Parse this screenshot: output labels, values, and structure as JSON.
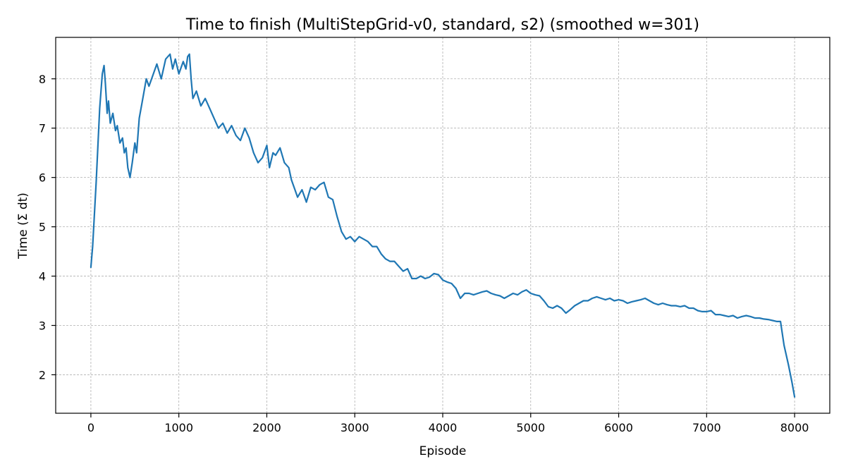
{
  "chart_data": {
    "type": "line",
    "title": "Time to finish (MultiStepGrid-v0, standard, s2) (smoothed w=301)",
    "xlabel": "Episode",
    "ylabel": "Time (Σ dt)",
    "xlim": [
      -400,
      8400
    ],
    "ylim": [
      1.22,
      8.84
    ],
    "xticks": [
      0,
      1000,
      2000,
      3000,
      4000,
      5000,
      6000,
      7000,
      8000
    ],
    "yticks": [
      2,
      3,
      4,
      5,
      6,
      7,
      8
    ],
    "grid": true,
    "series": [
      {
        "color": "#1f77b4",
        "points": [
          [
            0,
            4.18
          ],
          [
            20,
            4.6
          ],
          [
            60,
            5.9
          ],
          [
            100,
            7.4
          ],
          [
            130,
            8.1
          ],
          [
            150,
            8.27
          ],
          [
            165,
            7.9
          ],
          [
            185,
            7.3
          ],
          [
            200,
            7.55
          ],
          [
            220,
            7.1
          ],
          [
            250,
            7.3
          ],
          [
            280,
            6.95
          ],
          [
            300,
            7.05
          ],
          [
            330,
            6.7
          ],
          [
            360,
            6.8
          ],
          [
            380,
            6.5
          ],
          [
            400,
            6.6
          ],
          [
            420,
            6.2
          ],
          [
            445,
            6.0
          ],
          [
            470,
            6.3
          ],
          [
            500,
            6.7
          ],
          [
            520,
            6.5
          ],
          [
            550,
            7.2
          ],
          [
            580,
            7.5
          ],
          [
            600,
            7.7
          ],
          [
            630,
            8.0
          ],
          [
            660,
            7.85
          ],
          [
            700,
            8.05
          ],
          [
            750,
            8.3
          ],
          [
            800,
            8.0
          ],
          [
            850,
            8.4
          ],
          [
            900,
            8.5
          ],
          [
            930,
            8.2
          ],
          [
            960,
            8.4
          ],
          [
            1000,
            8.1
          ],
          [
            1050,
            8.35
          ],
          [
            1080,
            8.2
          ],
          [
            1100,
            8.45
          ],
          [
            1120,
            8.5
          ],
          [
            1140,
            8.0
          ],
          [
            1160,
            7.6
          ],
          [
            1200,
            7.75
          ],
          [
            1250,
            7.45
          ],
          [
            1300,
            7.6
          ],
          [
            1350,
            7.4
          ],
          [
            1400,
            7.2
          ],
          [
            1450,
            7.0
          ],
          [
            1500,
            7.1
          ],
          [
            1550,
            6.9
          ],
          [
            1600,
            7.05
          ],
          [
            1650,
            6.85
          ],
          [
            1700,
            6.75
          ],
          [
            1750,
            7.0
          ],
          [
            1800,
            6.8
          ],
          [
            1850,
            6.5
          ],
          [
            1900,
            6.3
          ],
          [
            1950,
            6.4
          ],
          [
            2000,
            6.65
          ],
          [
            2030,
            6.2
          ],
          [
            2070,
            6.5
          ],
          [
            2100,
            6.45
          ],
          [
            2150,
            6.6
          ],
          [
            2200,
            6.3
          ],
          [
            2250,
            6.2
          ],
          [
            2280,
            5.95
          ],
          [
            2320,
            5.75
          ],
          [
            2350,
            5.6
          ],
          [
            2400,
            5.75
          ],
          [
            2450,
            5.5
          ],
          [
            2500,
            5.8
          ],
          [
            2550,
            5.75
          ],
          [
            2600,
            5.85
          ],
          [
            2650,
            5.9
          ],
          [
            2700,
            5.6
          ],
          [
            2750,
            5.55
          ],
          [
            2800,
            5.2
          ],
          [
            2850,
            4.9
          ],
          [
            2900,
            4.75
          ],
          [
            2950,
            4.8
          ],
          [
            3000,
            4.7
          ],
          [
            3050,
            4.8
          ],
          [
            3100,
            4.75
          ],
          [
            3150,
            4.7
          ],
          [
            3200,
            4.6
          ],
          [
            3250,
            4.6
          ],
          [
            3300,
            4.45
          ],
          [
            3350,
            4.35
          ],
          [
            3400,
            4.3
          ],
          [
            3450,
            4.3
          ],
          [
            3500,
            4.2
          ],
          [
            3550,
            4.1
          ],
          [
            3600,
            4.15
          ],
          [
            3650,
            3.95
          ],
          [
            3700,
            3.95
          ],
          [
            3750,
            4.0
          ],
          [
            3800,
            3.95
          ],
          [
            3850,
            3.98
          ],
          [
            3900,
            4.05
          ],
          [
            3950,
            4.03
          ],
          [
            4000,
            3.92
          ],
          [
            4050,
            3.88
          ],
          [
            4100,
            3.85
          ],
          [
            4150,
            3.75
          ],
          [
            4200,
            3.55
          ],
          [
            4250,
            3.65
          ],
          [
            4300,
            3.65
          ],
          [
            4350,
            3.62
          ],
          [
            4400,
            3.65
          ],
          [
            4450,
            3.68
          ],
          [
            4500,
            3.7
          ],
          [
            4550,
            3.65
          ],
          [
            4600,
            3.62
          ],
          [
            4650,
            3.6
          ],
          [
            4700,
            3.55
          ],
          [
            4750,
            3.6
          ],
          [
            4800,
            3.65
          ],
          [
            4850,
            3.62
          ],
          [
            4900,
            3.68
          ],
          [
            4950,
            3.72
          ],
          [
            5000,
            3.65
          ],
          [
            5050,
            3.62
          ],
          [
            5100,
            3.6
          ],
          [
            5150,
            3.5
          ],
          [
            5200,
            3.38
          ],
          [
            5250,
            3.35
          ],
          [
            5300,
            3.4
          ],
          [
            5350,
            3.35
          ],
          [
            5400,
            3.25
          ],
          [
            5450,
            3.32
          ],
          [
            5500,
            3.4
          ],
          [
            5550,
            3.45
          ],
          [
            5600,
            3.5
          ],
          [
            5650,
            3.5
          ],
          [
            5700,
            3.55
          ],
          [
            5750,
            3.58
          ],
          [
            5800,
            3.55
          ],
          [
            5850,
            3.52
          ],
          [
            5900,
            3.55
          ],
          [
            5950,
            3.5
          ],
          [
            6000,
            3.52
          ],
          [
            6050,
            3.5
          ],
          [
            6100,
            3.45
          ],
          [
            6150,
            3.48
          ],
          [
            6200,
            3.5
          ],
          [
            6250,
            3.52
          ],
          [
            6300,
            3.55
          ],
          [
            6350,
            3.5
          ],
          [
            6400,
            3.45
          ],
          [
            6450,
            3.42
          ],
          [
            6500,
            3.45
          ],
          [
            6550,
            3.42
          ],
          [
            6600,
            3.4
          ],
          [
            6650,
            3.4
          ],
          [
            6700,
            3.38
          ],
          [
            6750,
            3.4
          ],
          [
            6800,
            3.35
          ],
          [
            6850,
            3.35
          ],
          [
            6900,
            3.3
          ],
          [
            6950,
            3.28
          ],
          [
            7000,
            3.28
          ],
          [
            7050,
            3.3
          ],
          [
            7100,
            3.22
          ],
          [
            7150,
            3.22
          ],
          [
            7200,
            3.2
          ],
          [
            7250,
            3.18
          ],
          [
            7300,
            3.2
          ],
          [
            7350,
            3.15
          ],
          [
            7400,
            3.18
          ],
          [
            7450,
            3.2
          ],
          [
            7500,
            3.18
          ],
          [
            7550,
            3.15
          ],
          [
            7600,
            3.15
          ],
          [
            7650,
            3.13
          ],
          [
            7700,
            3.12
          ],
          [
            7750,
            3.1
          ],
          [
            7800,
            3.08
          ],
          [
            7840,
            3.08
          ],
          [
            7880,
            2.6
          ],
          [
            7930,
            2.2
          ],
          [
            7970,
            1.85
          ],
          [
            8000,
            1.55
          ]
        ]
      }
    ]
  }
}
